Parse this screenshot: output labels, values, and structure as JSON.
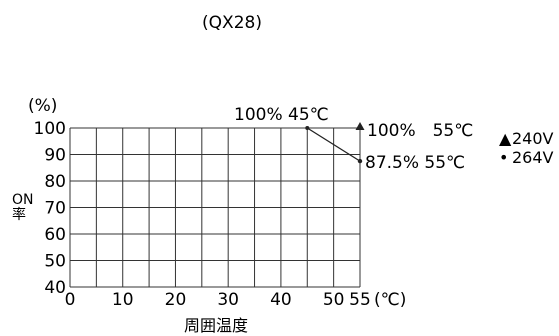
{
  "chart_data": {
    "type": "line",
    "title": "(QX28)",
    "xlabel": "周囲温度",
    "ylabel_top": "ON",
    "ylabel_bottom": "率",
    "y_unit": "(%)",
    "x_unit": "(℃)",
    "x_ticks": [
      "0",
      "10",
      "20",
      "30",
      "40",
      "50",
      "55"
    ],
    "y_ticks": [
      "40",
      "50",
      "60",
      "70",
      "80",
      "90",
      "100"
    ],
    "xlim": [
      0,
      55
    ],
    "ylim": [
      40,
      100
    ],
    "grid": true,
    "legend_position": "right",
    "series": [
      {
        "name": "240V",
        "marker": "triangle",
        "points": [
          [
            45,
            100
          ],
          [
            55,
            100
          ]
        ],
        "label_end": "100%　55℃"
      },
      {
        "name": "264V",
        "marker": "dot",
        "points": [
          [
            45,
            100
          ],
          [
            55,
            87.5
          ]
        ],
        "label_end": "87.5% 55℃"
      }
    ],
    "annotations": [
      {
        "text": "100% 45℃",
        "x": 45,
        "y": 100
      }
    ],
    "legend": [
      {
        "marker": "▲",
        "label": "240V"
      },
      {
        "marker": "•",
        "label": "264V"
      }
    ]
  }
}
